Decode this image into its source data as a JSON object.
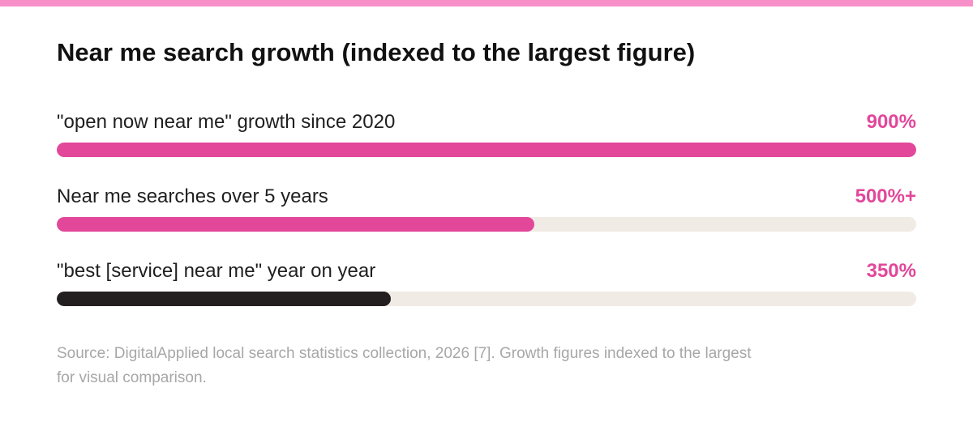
{
  "title": "Near me search growth (indexed to the largest figure)",
  "source_note": "Source: DigitalApplied local search statistics collection, 2026 [7]. Growth figures indexed to the largest for visual comparison.",
  "colors": {
    "accent_pink": "#e2479a",
    "dark_bar": "#231f20",
    "track": "#f1ebe5",
    "top_border": "#f78fc8"
  },
  "chart_data": {
    "type": "bar",
    "orientation": "horizontal",
    "title": "Near me search growth (indexed to the largest figure)",
    "categories": [
      "\"open now near me\" growth since 2020",
      "Near me searches over 5 years",
      "\"best [service] near me\" year on year"
    ],
    "values": [
      900,
      500,
      350
    ],
    "value_labels": [
      "900%",
      "500%+",
      "350%"
    ],
    "bar_colors": [
      "#e2479a",
      "#e2479a",
      "#231f20"
    ],
    "xlim": [
      0,
      900
    ],
    "grid": false,
    "legend": "none"
  }
}
